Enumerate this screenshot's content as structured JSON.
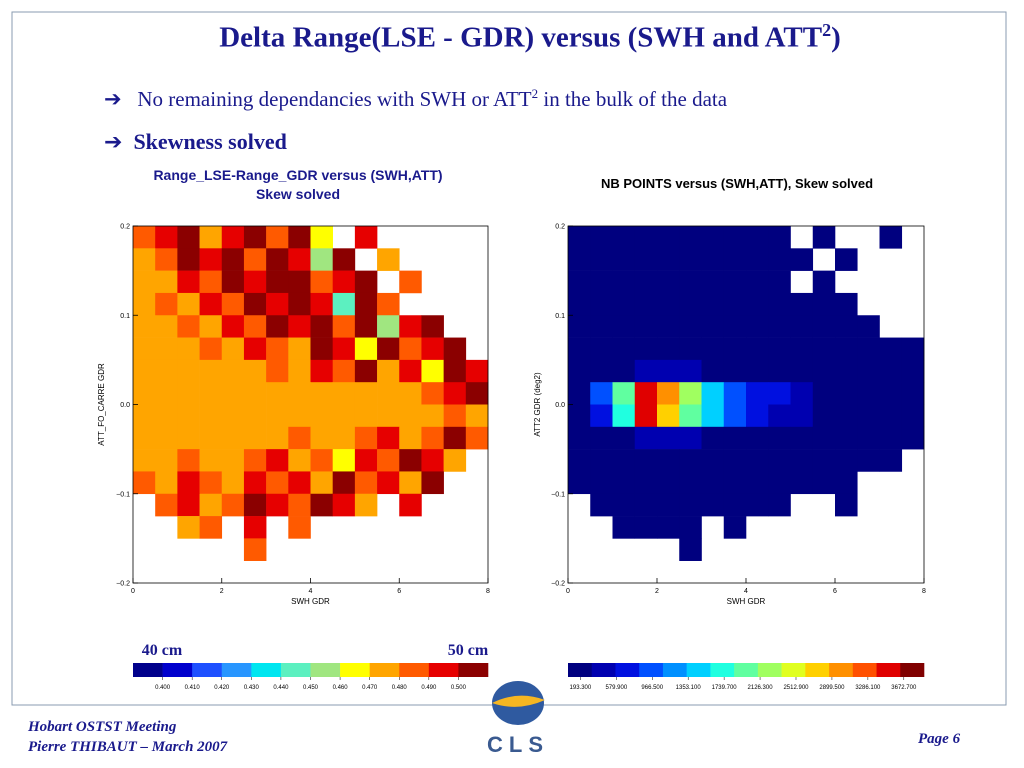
{
  "title": [
    "Delta Range(LSE - GDR) versus (SWH and ATT",
    "2",
    ")"
  ],
  "bullets": [
    [
      "No remaining dependancies with SWH or ATT",
      "2",
      " in the bulk of the data"
    ],
    [
      "Skewness solved"
    ]
  ],
  "footer": [
    "Hobart OSTST Meeting",
    "Pierre THIBAUT – March 2007"
  ],
  "page": "Page 6",
  "logo": "CLS",
  "chart_data": [
    {
      "type": "heatmap",
      "title": [
        "Range_LSE-Range_GDR versus (SWH,ATT)",
        "Skew solved"
      ],
      "xlabel": "SWH GDR",
      "ylabel": "ATT_FO_CARRE GDR",
      "xlim": [
        0,
        8
      ],
      "xticks": [
        0,
        2,
        4,
        6,
        8
      ],
      "ylim": [
        -0.2,
        0.2
      ],
      "yticks": [
        {
          "value": -0.2,
          "label": "−0.2"
        },
        {
          "value": -0.1,
          "label": "−0.1"
        },
        {
          "value": 0,
          "label": "0.0"
        },
        {
          "value": 0.1,
          "label": "0.1"
        },
        {
          "value": 0.2,
          "label": "0.2"
        }
      ],
      "annotations": [
        "40 cm",
        "50 cm"
      ],
      "z": [
        [
          0.485,
          0.495,
          0.505,
          0.475,
          0.495,
          0.505,
          0.485,
          0.505,
          0.465,
          null,
          0.495,
          null,
          null,
          null,
          null,
          null
        ],
        [
          0.475,
          0.485,
          0.505,
          0.495,
          0.505,
          0.485,
          0.505,
          0.495,
          0.455,
          0.505,
          null,
          0.475,
          null,
          null,
          null,
          null
        ],
        [
          0.475,
          0.475,
          0.495,
          0.485,
          0.505,
          0.495,
          0.505,
          0.505,
          0.485,
          0.495,
          0.505,
          null,
          0.485,
          null,
          null,
          null
        ],
        [
          0.475,
          0.485,
          0.475,
          0.495,
          0.485,
          0.505,
          0.495,
          0.505,
          0.495,
          0.445,
          0.505,
          0.485,
          null,
          null,
          null,
          null
        ],
        [
          0.475,
          0.475,
          0.485,
          0.475,
          0.495,
          0.485,
          0.505,
          0.495,
          0.505,
          0.485,
          0.505,
          0.455,
          0.495,
          0.505,
          null,
          null
        ],
        [
          0.475,
          0.475,
          0.475,
          0.485,
          0.475,
          0.495,
          0.485,
          0.475,
          0.505,
          0.495,
          0.465,
          0.505,
          0.485,
          0.495,
          0.505,
          null
        ],
        [
          0.475,
          0.475,
          0.475,
          0.475,
          0.475,
          0.475,
          0.485,
          0.475,
          0.495,
          0.485,
          0.505,
          0.475,
          0.495,
          0.465,
          0.505,
          0.495
        ],
        [
          0.475,
          0.475,
          0.475,
          0.475,
          0.475,
          0.475,
          0.475,
          0.475,
          0.475,
          0.475,
          0.475,
          0.475,
          0.475,
          0.485,
          0.495,
          0.505
        ],
        [
          0.475,
          0.475,
          0.475,
          0.475,
          0.475,
          0.475,
          0.475,
          0.475,
          0.475,
          0.475,
          0.475,
          0.475,
          0.475,
          0.475,
          0.485,
          0.475
        ],
        [
          0.475,
          0.475,
          0.475,
          0.475,
          0.475,
          0.475,
          0.475,
          0.485,
          0.475,
          0.475,
          0.485,
          0.495,
          0.475,
          0.485,
          0.505,
          0.485
        ],
        [
          0.475,
          0.475,
          0.485,
          0.475,
          0.475,
          0.485,
          0.495,
          0.475,
          0.485,
          0.465,
          0.495,
          0.485,
          0.505,
          0.495,
          0.475,
          null
        ],
        [
          0.485,
          0.475,
          0.495,
          0.485,
          0.475,
          0.495,
          0.485,
          0.495,
          0.475,
          0.505,
          0.485,
          0.495,
          0.475,
          0.505,
          null,
          null
        ],
        [
          null,
          0.485,
          0.495,
          0.475,
          0.485,
          0.505,
          0.495,
          0.485,
          0.505,
          0.495,
          0.475,
          null,
          0.495,
          null,
          null,
          null
        ],
        [
          null,
          null,
          0.475,
          0.485,
          null,
          0.495,
          null,
          0.485,
          null,
          null,
          null,
          null,
          null,
          null,
          null,
          null
        ],
        [
          null,
          null,
          null,
          null,
          null,
          0.485,
          null,
          null,
          null,
          null,
          null,
          null,
          null,
          null,
          null,
          null
        ],
        [
          null,
          null,
          null,
          null,
          null,
          null,
          null,
          null,
          null,
          null,
          null,
          null,
          null,
          null,
          null,
          null
        ]
      ],
      "colorbar": {
        "colors": [
          "#00008b",
          "#0000cd",
          "#1e50ff",
          "#2896ff",
          "#00e6f0",
          "#5cf0c0",
          "#a0e680",
          "#ffff00",
          "#ffa500",
          "#ff5a00",
          "#e60000",
          "#8b0000"
        ],
        "zlim": [
          0.39,
          0.51
        ],
        "ticks": [
          {
            "value": 0.4,
            "label": "0.400"
          },
          {
            "value": 0.41,
            "label": "0.410"
          },
          {
            "value": 0.42,
            "label": "0.420"
          },
          {
            "value": 0.43,
            "label": "0.430"
          },
          {
            "value": 0.44,
            "label": "0.440"
          },
          {
            "value": 0.45,
            "label": "0.450"
          },
          {
            "value": 0.46,
            "label": "0.460"
          },
          {
            "value": 0.47,
            "label": "0.470"
          },
          {
            "value": 0.48,
            "label": "0.480"
          },
          {
            "value": 0.49,
            "label": "0.490"
          },
          {
            "value": 0.5,
            "label": "0.500"
          }
        ]
      }
    },
    {
      "type": "heatmap",
      "title": [
        "NB POINTS versus (SWH,ATT), Skew solved"
      ],
      "xlabel": "SWH GDR",
      "ylabel": "ATT2 GDR (deg2)",
      "xlim": [
        0,
        8
      ],
      "xticks": [
        0,
        2,
        4,
        6,
        8
      ],
      "ylim": [
        -0.2,
        0.2
      ],
      "yticks": [
        {
          "value": -0.2,
          "label": "−0.2"
        },
        {
          "value": -0.1,
          "label": "−0.1"
        },
        {
          "value": 0,
          "label": "0.0"
        },
        {
          "value": 0.1,
          "label": "0.1"
        },
        {
          "value": 0.2,
          "label": "0.2"
        }
      ],
      "z": [
        [
          20,
          20,
          20,
          20,
          20,
          20,
          20,
          20,
          20,
          10,
          null,
          10,
          null,
          null,
          10,
          null
        ],
        [
          20,
          20,
          20,
          20,
          20,
          20,
          20,
          20,
          10,
          10,
          10,
          null,
          10,
          null,
          null,
          null
        ],
        [
          20,
          20,
          20,
          20,
          20,
          20,
          20,
          20,
          10,
          10,
          null,
          10,
          null,
          null,
          null,
          null
        ],
        [
          20,
          20,
          20,
          20,
          20,
          20,
          20,
          20,
          20,
          10,
          10,
          10,
          10,
          null,
          null,
          null
        ],
        [
          20,
          20,
          20,
          20,
          20,
          20,
          20,
          20,
          20,
          10,
          10,
          10,
          10,
          10,
          null,
          null
        ],
        [
          30,
          30,
          30,
          30,
          30,
          30,
          30,
          30,
          30,
          20,
          20,
          10,
          10,
          10,
          10,
          10
        ],
        [
          60,
          150,
          300,
          500,
          500,
          400,
          300,
          200,
          150,
          100,
          60,
          40,
          30,
          20,
          10,
          10
        ],
        [
          200,
          900,
          2000,
          3600,
          3000,
          2200,
          1500,
          1000,
          800,
          600,
          400,
          250,
          150,
          80,
          40,
          20
        ],
        [
          200,
          800,
          1800,
          3400,
          2800,
          2000,
          1400,
          900,
          700,
          500,
          350,
          200,
          120,
          60,
          30,
          20
        ],
        [
          60,
          150,
          300,
          500,
          500,
          400,
          300,
          200,
          150,
          100,
          60,
          40,
          30,
          20,
          10,
          10
        ],
        [
          30,
          30,
          30,
          30,
          30,
          30,
          30,
          30,
          30,
          20,
          20,
          10,
          10,
          10,
          10,
          null
        ],
        [
          20,
          20,
          20,
          20,
          20,
          20,
          20,
          20,
          20,
          10,
          10,
          10,
          10,
          null,
          null,
          null
        ],
        [
          null,
          20,
          20,
          20,
          20,
          20,
          20,
          20,
          10,
          10,
          null,
          null,
          10,
          null,
          null,
          null
        ],
        [
          null,
          null,
          10,
          10,
          10,
          10,
          null,
          10,
          null,
          null,
          null,
          null,
          null,
          null,
          null,
          null
        ],
        [
          null,
          null,
          null,
          null,
          null,
          10,
          null,
          null,
          null,
          null,
          null,
          null,
          null,
          null,
          null,
          null
        ],
        [
          null,
          null,
          null,
          null,
          null,
          null,
          null,
          null,
          null,
          null,
          null,
          null,
          null,
          null,
          null,
          null
        ]
      ],
      "colorbar": {
        "colors": [
          "#00007f",
          "#0000b0",
          "#0010e0",
          "#0050ff",
          "#0090ff",
          "#00d0ff",
          "#20ffe0",
          "#60ffa0",
          "#a0ff60",
          "#e0ff20",
          "#ffd000",
          "#ff9000",
          "#ff5000",
          "#e00000",
          "#800000"
        ],
        "zlim": [
          60,
          3890
        ],
        "ticks": [
          {
            "value": 193.3,
            "label": "193.300"
          },
          {
            "value": 579.9,
            "label": "579.900"
          },
          {
            "value": 966.5,
            "label": "966.500"
          },
          {
            "value": 1353.1,
            "label": "1353.100"
          },
          {
            "value": 1739.7,
            "label": "1739.700"
          },
          {
            "value": 2126.3,
            "label": "2126.300"
          },
          {
            "value": 2512.9,
            "label": "2512.900"
          },
          {
            "value": 2899.5,
            "label": "2899.500"
          },
          {
            "value": 3286.1,
            "label": "3286.100"
          },
          {
            "value": 3672.7,
            "label": "3672.700"
          }
        ]
      }
    }
  ]
}
